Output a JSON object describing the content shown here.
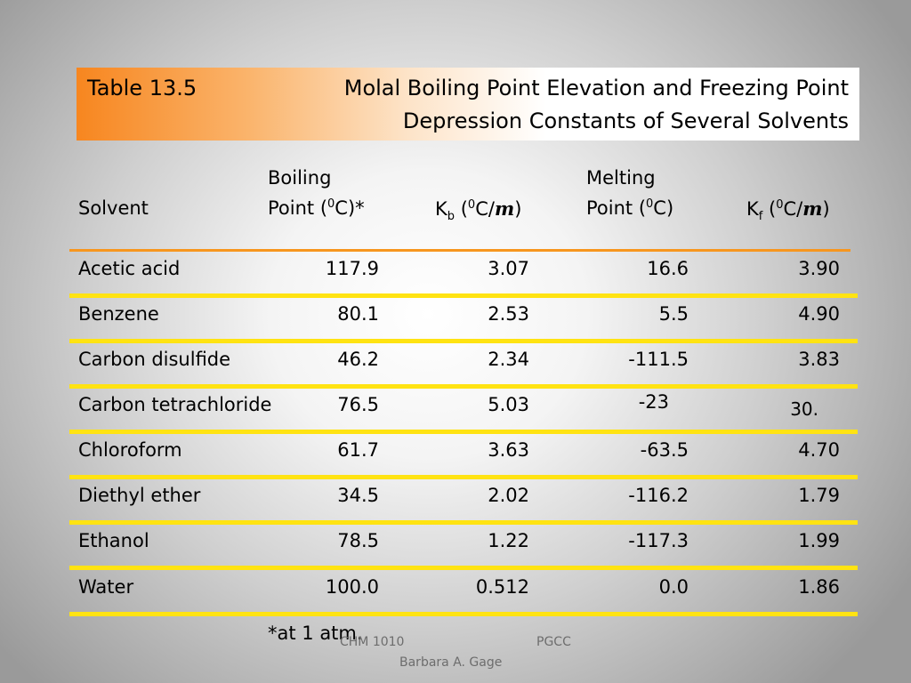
{
  "title": {
    "label": "Table 13.5",
    "line1": "Molal Boiling Point Elevation and Freezing Point",
    "line2": "Depression Constants of Several Solvents"
  },
  "headers": {
    "solvent": "Solvent",
    "bp_line1": "Boiling",
    "bp_line2_pre": "Point (",
    "bp_line2_sup": "0",
    "bp_line2_post": "C)*",
    "kb_k": "K",
    "kb_sub": "b",
    "kb_open": " (",
    "kb_sup": "0",
    "kb_unit": "C/",
    "kb_m": "m",
    "kb_close": ")",
    "mp_line1": "Melting",
    "mp_line2_pre": "Point (",
    "mp_line2_sup": "0",
    "mp_line2_post": "C)",
    "kf_k": "K",
    "kf_sub": "f",
    "kf_open": " (",
    "kf_sup": "0",
    "kf_unit": "C/",
    "kf_m": "m",
    "kf_close": ")"
  },
  "rows": [
    {
      "solvent": "Acetic acid",
      "bp": "117.9",
      "kb": "3.07",
      "mp": "16.6",
      "kf": "3.90"
    },
    {
      "solvent": "Benzene",
      "bp": "80.1",
      "kb": "2.53",
      "mp": "5.5",
      "kf": "4.90"
    },
    {
      "solvent": "Carbon disulfide",
      "bp": "46.2",
      "kb": "2.34",
      "mp": "-111.5",
      "kf": "3.83"
    },
    {
      "solvent": "Carbon tetrachloride",
      "bp": "76.5",
      "kb": "5.03",
      "mp": "-23",
      "kf": "30."
    },
    {
      "solvent": "Chloroform",
      "bp": "61.7",
      "kb": "3.63",
      "mp": "-63.5",
      "kf": "4.70"
    },
    {
      "solvent": "Diethyl ether",
      "bp": "34.5",
      "kb": "2.02",
      "mp": "-116.2",
      "kf": "1.79"
    },
    {
      "solvent": "Ethanol",
      "bp": "78.5",
      "kb": "1.22",
      "mp": "-117.3",
      "kf": "1.99"
    },
    {
      "solvent": "Water",
      "bp": "100.0",
      "kb": "0.512",
      "mp": "0.0",
      "kf": "1.86"
    }
  ],
  "footnote": "*at 1 atm.",
  "footer": {
    "course": "CHM 1010",
    "school": "PGCC",
    "author": "Barbara A. Gage"
  },
  "colors": {
    "title_gradient_start": "#f7861f",
    "header_rule": "#f7961e",
    "row_rule": "#ffe312"
  }
}
